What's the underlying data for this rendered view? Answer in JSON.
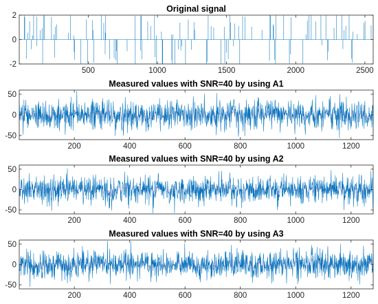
{
  "colors": {
    "signal": "#0072BD",
    "secondary": "#7E2F8E",
    "axis": "#262626"
  },
  "chart_data": [
    {
      "type": "line",
      "title": "Original signal",
      "xlabel": "",
      "ylabel": "",
      "xlim": [
        1,
        2560
      ],
      "ylim": [
        -2,
        2
      ],
      "xticks": [
        500,
        1000,
        1500,
        2000,
        2500
      ],
      "yticks": [
        -2,
        0,
        2
      ],
      "n_points": 2560,
      "sparse": true,
      "series": [
        {
          "values": []
        }
      ]
    },
    {
      "type": "line",
      "title": "Measured values with SNR=40 by using A1",
      "xlabel": "",
      "ylabel": "",
      "xlim": [
        1,
        1280
      ],
      "ylim": [
        -60,
        60
      ],
      "xticks": [
        200,
        400,
        600,
        800,
        1000,
        1200
      ],
      "yticks": [
        -50,
        0,
        50
      ],
      "n_points": 1280,
      "sparse": false,
      "amplitude": 18,
      "series": [
        {
          "values": []
        }
      ]
    },
    {
      "type": "line",
      "title": "Measured values with SNR=40 by using A2",
      "xlabel": "",
      "ylabel": "",
      "xlim": [
        1,
        1280
      ],
      "ylim": [
        -60,
        60
      ],
      "xticks": [
        200,
        400,
        600,
        800,
        1000,
        1200
      ],
      "yticks": [
        -50,
        0,
        50
      ],
      "n_points": 1280,
      "sparse": false,
      "amplitude": 18,
      "series": [
        {
          "values": []
        }
      ]
    },
    {
      "type": "line",
      "title": "Measured values with SNR=40 by using A3",
      "xlabel": "",
      "ylabel": "",
      "xlim": [
        1,
        1280
      ],
      "ylim": [
        -60,
        60
      ],
      "xticks": [
        200,
        400,
        600,
        800,
        1000,
        1200
      ],
      "yticks": [
        -50,
        0,
        50
      ],
      "n_points": 1280,
      "sparse": false,
      "amplitude": 18,
      "series": [
        {
          "values": []
        }
      ]
    }
  ]
}
